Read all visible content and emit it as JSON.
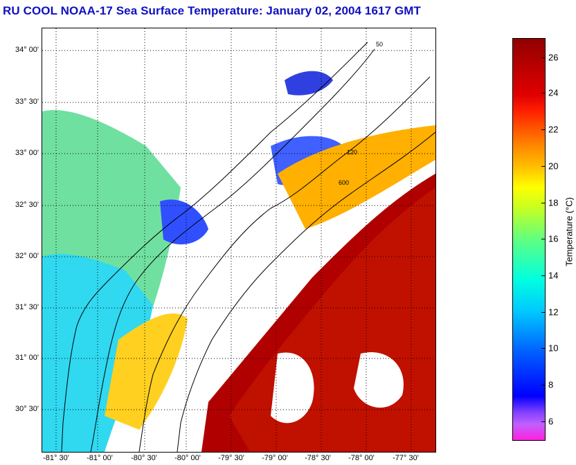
{
  "title": "RU COOL  NOAA-17  Sea Surface Temperature:  January 02, 2004 1617 GMT",
  "map": {
    "lat_labels": [
      "34° 00'",
      "33° 30'",
      "33° 00'",
      "32° 30'",
      "32° 00'",
      "31° 30'",
      "31° 00'",
      "30° 30'"
    ],
    "lon_labels": [
      "-81° 30'",
      "-81° 00'",
      "-80° 30'",
      "-80° 00'",
      "-79° 30'",
      "-79° 00'",
      "-78° 30'",
      "-78° 00'",
      "-77° 30'"
    ],
    "contour_labels": [
      "50",
      "120",
      "600"
    ]
  },
  "colorbar": {
    "label": "Temperature (°C)",
    "ticks": [
      "26",
      "24",
      "22",
      "20",
      "18",
      "16",
      "14",
      "12",
      "10",
      "8",
      "6"
    ],
    "range": [
      5,
      27
    ]
  },
  "colors": {
    "title": "#1010c0",
    "warm": "#b00000",
    "cool": "#00c8ff"
  }
}
